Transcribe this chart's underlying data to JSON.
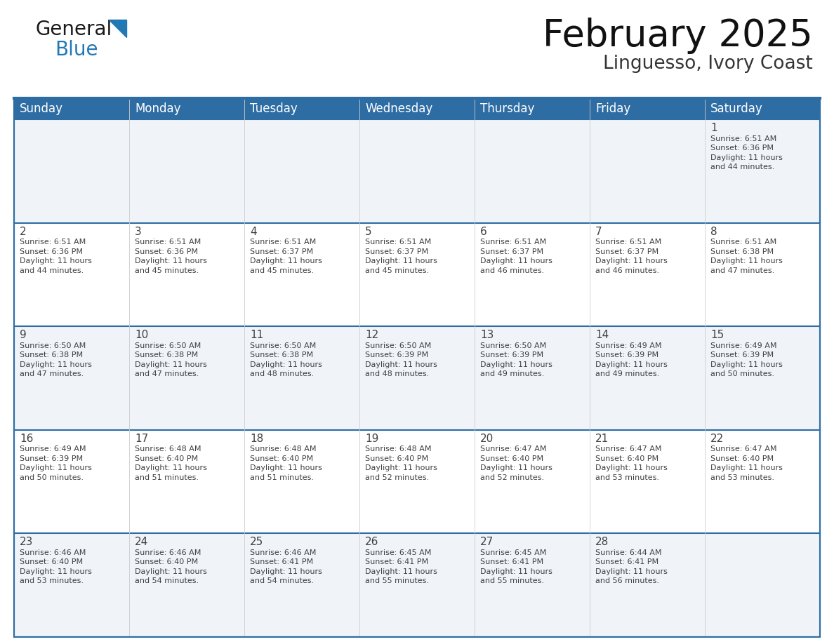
{
  "title": "February 2025",
  "subtitle": "Linguesso, Ivory Coast",
  "header_bg": "#2E6DA4",
  "header_text": "#FFFFFF",
  "cell_bg_odd": "#F0F4F8",
  "cell_bg_even": "#FFFFFF",
  "border_color": "#2E6DA4",
  "text_color": "#404040",
  "day_headers": [
    "Sunday",
    "Monday",
    "Tuesday",
    "Wednesday",
    "Thursday",
    "Friday",
    "Saturday"
  ],
  "logo_general_color": "#1a1a1a",
  "logo_blue_color": "#2278B5",
  "title_fontsize": 38,
  "subtitle_fontsize": 19,
  "header_fontsize": 12,
  "day_num_fontsize": 11,
  "cell_text_fontsize": 8.0,
  "days": [
    {
      "date": 1,
      "row": 0,
      "col": 6,
      "sunrise": "6:51 AM",
      "sunset": "6:36 PM",
      "daylight_line1": "Daylight: 11 hours",
      "daylight_line2": "and 44 minutes."
    },
    {
      "date": 2,
      "row": 1,
      "col": 0,
      "sunrise": "6:51 AM",
      "sunset": "6:36 PM",
      "daylight_line1": "Daylight: 11 hours",
      "daylight_line2": "and 44 minutes."
    },
    {
      "date": 3,
      "row": 1,
      "col": 1,
      "sunrise": "6:51 AM",
      "sunset": "6:36 PM",
      "daylight_line1": "Daylight: 11 hours",
      "daylight_line2": "and 45 minutes."
    },
    {
      "date": 4,
      "row": 1,
      "col": 2,
      "sunrise": "6:51 AM",
      "sunset": "6:37 PM",
      "daylight_line1": "Daylight: 11 hours",
      "daylight_line2": "and 45 minutes."
    },
    {
      "date": 5,
      "row": 1,
      "col": 3,
      "sunrise": "6:51 AM",
      "sunset": "6:37 PM",
      "daylight_line1": "Daylight: 11 hours",
      "daylight_line2": "and 45 minutes."
    },
    {
      "date": 6,
      "row": 1,
      "col": 4,
      "sunrise": "6:51 AM",
      "sunset": "6:37 PM",
      "daylight_line1": "Daylight: 11 hours",
      "daylight_line2": "and 46 minutes."
    },
    {
      "date": 7,
      "row": 1,
      "col": 5,
      "sunrise": "6:51 AM",
      "sunset": "6:37 PM",
      "daylight_line1": "Daylight: 11 hours",
      "daylight_line2": "and 46 minutes."
    },
    {
      "date": 8,
      "row": 1,
      "col": 6,
      "sunrise": "6:51 AM",
      "sunset": "6:38 PM",
      "daylight_line1": "Daylight: 11 hours",
      "daylight_line2": "and 47 minutes."
    },
    {
      "date": 9,
      "row": 2,
      "col": 0,
      "sunrise": "6:50 AM",
      "sunset": "6:38 PM",
      "daylight_line1": "Daylight: 11 hours",
      "daylight_line2": "and 47 minutes."
    },
    {
      "date": 10,
      "row": 2,
      "col": 1,
      "sunrise": "6:50 AM",
      "sunset": "6:38 PM",
      "daylight_line1": "Daylight: 11 hours",
      "daylight_line2": "and 47 minutes."
    },
    {
      "date": 11,
      "row": 2,
      "col": 2,
      "sunrise": "6:50 AM",
      "sunset": "6:38 PM",
      "daylight_line1": "Daylight: 11 hours",
      "daylight_line2": "and 48 minutes."
    },
    {
      "date": 12,
      "row": 2,
      "col": 3,
      "sunrise": "6:50 AM",
      "sunset": "6:39 PM",
      "daylight_line1": "Daylight: 11 hours",
      "daylight_line2": "and 48 minutes."
    },
    {
      "date": 13,
      "row": 2,
      "col": 4,
      "sunrise": "6:50 AM",
      "sunset": "6:39 PM",
      "daylight_line1": "Daylight: 11 hours",
      "daylight_line2": "and 49 minutes."
    },
    {
      "date": 14,
      "row": 2,
      "col": 5,
      "sunrise": "6:49 AM",
      "sunset": "6:39 PM",
      "daylight_line1": "Daylight: 11 hours",
      "daylight_line2": "and 49 minutes."
    },
    {
      "date": 15,
      "row": 2,
      "col": 6,
      "sunrise": "6:49 AM",
      "sunset": "6:39 PM",
      "daylight_line1": "Daylight: 11 hours",
      "daylight_line2": "and 50 minutes."
    },
    {
      "date": 16,
      "row": 3,
      "col": 0,
      "sunrise": "6:49 AM",
      "sunset": "6:39 PM",
      "daylight_line1": "Daylight: 11 hours",
      "daylight_line2": "and 50 minutes."
    },
    {
      "date": 17,
      "row": 3,
      "col": 1,
      "sunrise": "6:48 AM",
      "sunset": "6:40 PM",
      "daylight_line1": "Daylight: 11 hours",
      "daylight_line2": "and 51 minutes."
    },
    {
      "date": 18,
      "row": 3,
      "col": 2,
      "sunrise": "6:48 AM",
      "sunset": "6:40 PM",
      "daylight_line1": "Daylight: 11 hours",
      "daylight_line2": "and 51 minutes."
    },
    {
      "date": 19,
      "row": 3,
      "col": 3,
      "sunrise": "6:48 AM",
      "sunset": "6:40 PM",
      "daylight_line1": "Daylight: 11 hours",
      "daylight_line2": "and 52 minutes."
    },
    {
      "date": 20,
      "row": 3,
      "col": 4,
      "sunrise": "6:47 AM",
      "sunset": "6:40 PM",
      "daylight_line1": "Daylight: 11 hours",
      "daylight_line2": "and 52 minutes."
    },
    {
      "date": 21,
      "row": 3,
      "col": 5,
      "sunrise": "6:47 AM",
      "sunset": "6:40 PM",
      "daylight_line1": "Daylight: 11 hours",
      "daylight_line2": "and 53 minutes."
    },
    {
      "date": 22,
      "row": 3,
      "col": 6,
      "sunrise": "6:47 AM",
      "sunset": "6:40 PM",
      "daylight_line1": "Daylight: 11 hours",
      "daylight_line2": "and 53 minutes."
    },
    {
      "date": 23,
      "row": 4,
      "col": 0,
      "sunrise": "6:46 AM",
      "sunset": "6:40 PM",
      "daylight_line1": "Daylight: 11 hours",
      "daylight_line2": "and 53 minutes."
    },
    {
      "date": 24,
      "row": 4,
      "col": 1,
      "sunrise": "6:46 AM",
      "sunset": "6:40 PM",
      "daylight_line1": "Daylight: 11 hours",
      "daylight_line2": "and 54 minutes."
    },
    {
      "date": 25,
      "row": 4,
      "col": 2,
      "sunrise": "6:46 AM",
      "sunset": "6:41 PM",
      "daylight_line1": "Daylight: 11 hours",
      "daylight_line2": "and 54 minutes."
    },
    {
      "date": 26,
      "row": 4,
      "col": 3,
      "sunrise": "6:45 AM",
      "sunset": "6:41 PM",
      "daylight_line1": "Daylight: 11 hours",
      "daylight_line2": "and 55 minutes."
    },
    {
      "date": 27,
      "row": 4,
      "col": 4,
      "sunrise": "6:45 AM",
      "sunset": "6:41 PM",
      "daylight_line1": "Daylight: 11 hours",
      "daylight_line2": "and 55 minutes."
    },
    {
      "date": 28,
      "row": 4,
      "col": 5,
      "sunrise": "6:44 AM",
      "sunset": "6:41 PM",
      "daylight_line1": "Daylight: 11 hours",
      "daylight_line2": "and 56 minutes."
    }
  ]
}
